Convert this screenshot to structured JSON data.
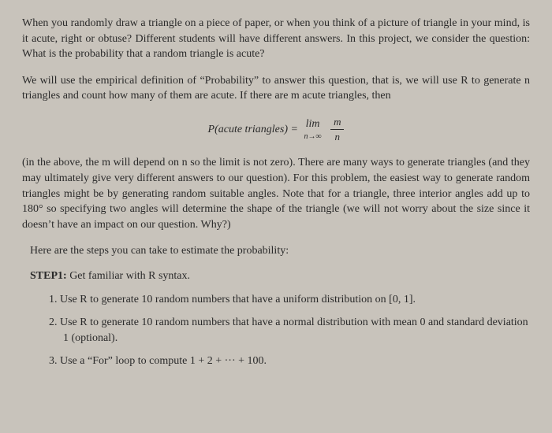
{
  "paragraphs": {
    "intro": "When you randomly draw a triangle on a piece of paper, or when you think of a picture of triangle in your mind, is it acute, right or obtuse? Different students will have different answers. In this project, we consider the question: What is the probability that a random triangle is acute?",
    "empirical": "We will use the empirical definition of “Probability” to answer this question, that is, we will use R to generate n triangles and count how many of them are acute. If there are m acute triangles, then",
    "explanation": "(in the above, the m will depend on n so the limit is not zero). There are many ways to generate triangles (and they may ultimately give very different answers to our question). For this problem, the easiest way to generate random triangles might be by generating random suitable angles. Note that for a triangle, three interior angles add up to 180° so specifying two angles will determine the shape of the triangle (we will not worry about the size since it doesn’t have an impact on our question. Why?)",
    "steps_intro": "Here are the steps you can take to estimate the probability:"
  },
  "formula": {
    "ptext": "P",
    "paren_text": "(acute triangles) = ",
    "lim": "lim",
    "limit_sub": "n→∞",
    "numerator": "m",
    "denominator": "n"
  },
  "step1": {
    "label": "STEP1:",
    "text": " Get familiar with R syntax."
  },
  "items": {
    "item1_num": "1. ",
    "item1_text": "Use R to generate 10 random numbers that have a uniform distribution on [0, 1].",
    "item2_num": "2. ",
    "item2_text": "Use R to generate 10 random numbers that have a normal distribution with mean 0 and standard deviation 1 (optional).",
    "item3_num": "3. ",
    "item3_text": "Use a “For” loop to compute 1 + 2 + ··· + 100."
  },
  "colors": {
    "background": "#c8c3bb",
    "text": "#2a2a2a"
  },
  "typography": {
    "body_fontsize": 14,
    "font_family": "Georgia, Times New Roman, serif"
  }
}
